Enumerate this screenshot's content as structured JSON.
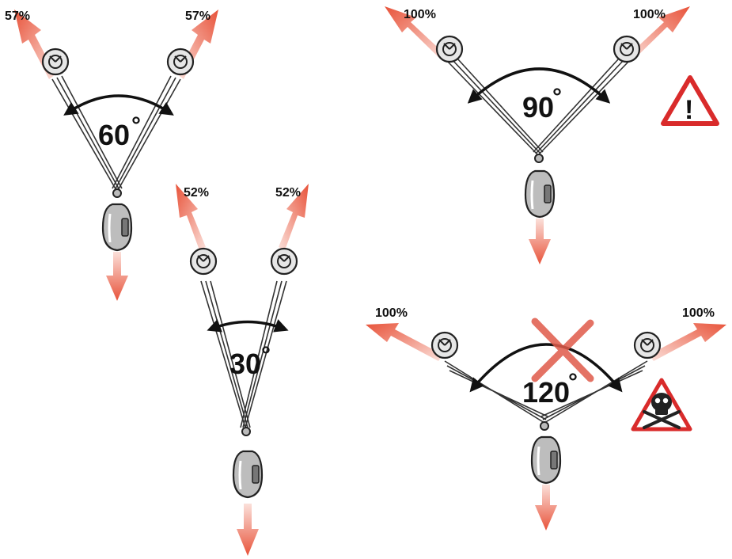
{
  "colors": {
    "arrow": "#e8533a",
    "arrow_light": "#f7c3b8",
    "sling": "#444444",
    "warning_red": "#d92b2b",
    "cross_red": "#e05a4a"
  },
  "icons": {
    "anchor": "bolt-hanger-icon",
    "carabiner": "carabiner-icon",
    "warning": "warning-triangle-icon",
    "danger": "skull-crossbones-icon",
    "not_allowed": "red-x-icon"
  },
  "diagrams": [
    {
      "id": "a60",
      "angle": "60",
      "deg": "°",
      "left_pct": "57%",
      "right_pct": "57%"
    },
    {
      "id": "a30",
      "angle": "30",
      "deg": "°",
      "left_pct": "52%",
      "right_pct": "52%"
    },
    {
      "id": "a90",
      "angle": "90",
      "deg": "°",
      "left_pct": "100%",
      "right_pct": "100%",
      "warning_glyph": "!"
    },
    {
      "id": "a120",
      "angle": "120",
      "deg": "°",
      "left_pct": "100%",
      "right_pct": "100%"
    }
  ]
}
